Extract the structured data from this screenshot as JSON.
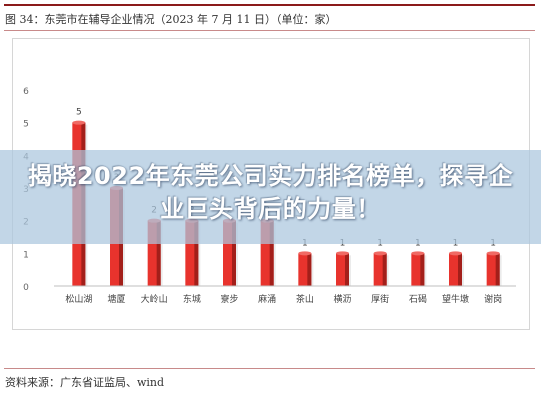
{
  "figure": {
    "title": "图 34：东莞市在辅导企业情况（2023 年 7 月 11 日）（单位：家）",
    "source": "资料来源：广东省证监局、wind"
  },
  "banner": {
    "headline": "揭晓2022年东莞公司实力排名榜单，探寻企业巨头背后的力量！"
  },
  "colors": {
    "bar": "#e8332d",
    "bar_side": "#a31f1a",
    "brand_rule": "#8b1a1a"
  },
  "chart_data": {
    "type": "bar",
    "title": "东莞市在辅导企业情况（2023 年 7 月 11 日）（单位：家）",
    "categories": [
      "松山湖",
      "塘厦",
      "大岭山",
      "东城",
      "寮步",
      "麻涌",
      "茶山",
      "横沥",
      "厚街",
      "石碣",
      "望牛墩",
      "谢岗"
    ],
    "values": [
      5,
      3,
      2,
      2,
      2,
      2,
      1,
      1,
      1,
      1,
      1,
      1
    ],
    "data_labels": [
      "5",
      "3",
      "2",
      "2",
      "2",
      "2",
      "1",
      "1",
      "1",
      "1",
      "1",
      "1"
    ],
    "y_ticks": [
      "0",
      "1",
      "2",
      "3",
      "4",
      "5",
      "6"
    ],
    "ylim": [
      0,
      6
    ],
    "xlabel": "",
    "ylabel": "",
    "grid": false,
    "legend": "none"
  }
}
